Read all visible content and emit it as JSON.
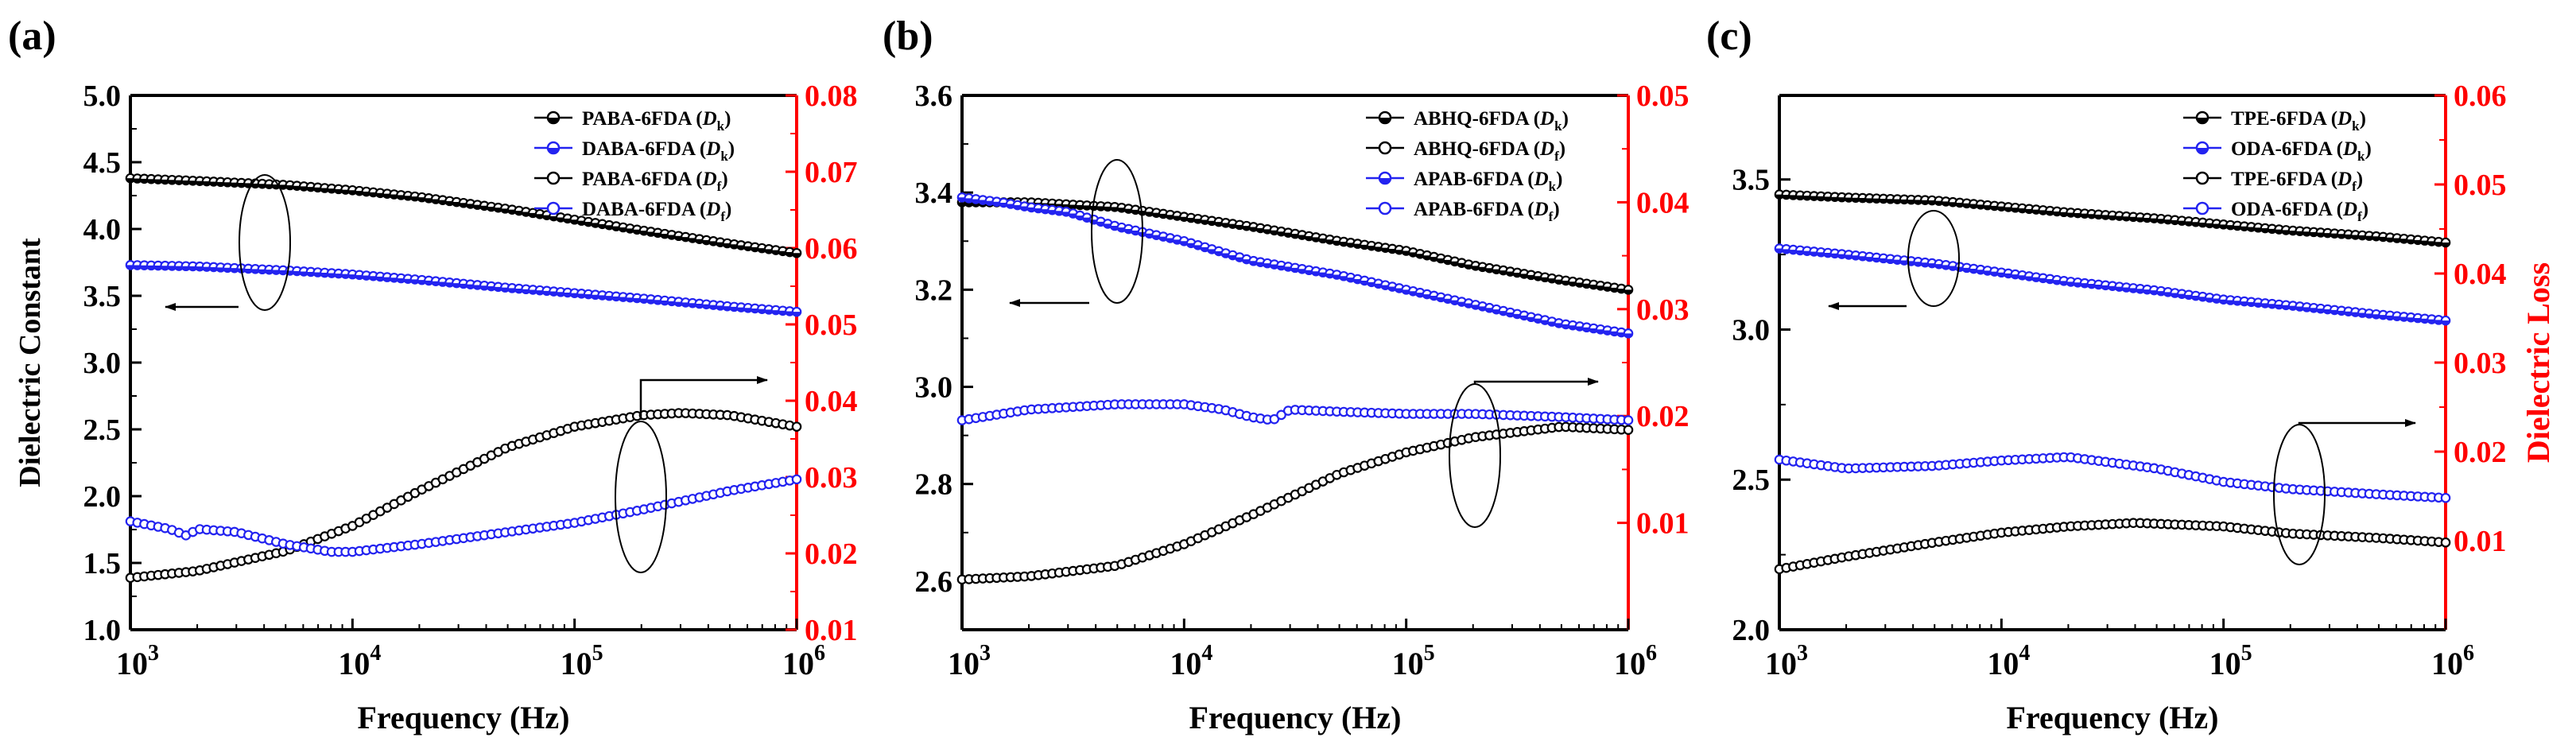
{
  "colors": {
    "black": "#000000",
    "blue": "#2323f0",
    "red": "#ff0000"
  },
  "axis_titles": {
    "frequency": "Frequency (Hz)",
    "dielectric_constant": "Dielectric  Constant",
    "dielectric_loss": "Dielectric Loss"
  },
  "chart_data": [
    {
      "panel": "(a)",
      "type": "line",
      "xlabel": "Frequency (Hz)",
      "ylabel": "Dielectric  Constant",
      "xscale": "log",
      "xlim": [
        1000,
        1000000
      ],
      "xticks": [
        {
          "exp": "3"
        },
        {
          "exp": "4"
        },
        {
          "exp": "5"
        },
        {
          "exp": "6"
        }
      ],
      "ylim": [
        1.0,
        5.0
      ],
      "yticks": [
        "1.0",
        "1.5",
        "2.0",
        "2.5",
        "3.0",
        "3.5",
        "4.0",
        "4.5",
        "5.0"
      ],
      "y2lim": [
        0.01,
        0.08
      ],
      "y2ticks": [
        "0.01",
        "0.02",
        "0.03",
        "0.04",
        "0.05",
        "0.06",
        "0.07",
        "0.08"
      ],
      "legend_position": "top-right",
      "legend": [
        {
          "text": "PABA-6FDA (",
          "sym": "D",
          "sub": "k",
          "marker": "half-filled",
          "color": "#000000"
        },
        {
          "text": "DABA-6FDA (",
          "sym": "D",
          "sub": "k",
          "marker": "half-filled",
          "color": "#2323f0"
        },
        {
          "text": "PABA-6FDA (",
          "sym": "D",
          "sub": "f",
          "marker": "open",
          "color": "#000000"
        },
        {
          "text": "DABA-6FDA (",
          "sym": "D",
          "sub": "f",
          "marker": "open",
          "color": "#2323f0"
        }
      ],
      "series": [
        {
          "name": "PABA-6FDA (Dk)",
          "axis": "left",
          "color": "#000000",
          "marker": "half-filled",
          "x": [
            1000,
            2000,
            5000,
            10000,
            20000,
            50000,
            100000,
            200000,
            500000,
            1000000
          ],
          "y": [
            4.38,
            4.36,
            4.33,
            4.29,
            4.24,
            4.15,
            4.07,
            3.99,
            3.89,
            3.82
          ]
        },
        {
          "name": "DABA-6FDA (Dk)",
          "axis": "left",
          "color": "#2323f0",
          "marker": "half-filled",
          "x": [
            1000,
            2000,
            5000,
            10000,
            20000,
            50000,
            100000,
            200000,
            500000,
            1000000
          ],
          "y": [
            3.73,
            3.72,
            3.69,
            3.66,
            3.62,
            3.56,
            3.52,
            3.48,
            3.42,
            3.38
          ]
        },
        {
          "name": "PABA-6FDA (Df)",
          "axis": "right",
          "color": "#000000",
          "marker": "open",
          "x": [
            1000,
            2000,
            5000,
            10000,
            20000,
            50000,
            100000,
            200000,
            300000,
            500000,
            1000000
          ],
          "y": [
            0.0168,
            0.0177,
            0.0203,
            0.0236,
            0.0282,
            0.0339,
            0.0366,
            0.0381,
            0.0384,
            0.0381,
            0.0366
          ]
        },
        {
          "name": "DABA-6FDA (Df)",
          "axis": "right",
          "color": "#2323f0",
          "marker": "open",
          "x": [
            1000,
            1500,
            1800,
            2000,
            3000,
            5000,
            8000,
            10000,
            20000,
            50000,
            100000,
            200000,
            500000,
            1000000
          ],
          "y": [
            0.0242,
            0.0232,
            0.0223,
            0.0232,
            0.0228,
            0.0212,
            0.0202,
            0.0202,
            0.0212,
            0.0228,
            0.024,
            0.0257,
            0.0282,
            0.0297
          ]
        }
      ]
    },
    {
      "panel": "(b)",
      "type": "line",
      "xlabel": "Frequency (Hz)",
      "ylabel": "",
      "xscale": "log",
      "xlim": [
        1000,
        1000000
      ],
      "xticks": [
        {
          "exp": "3"
        },
        {
          "exp": "4"
        },
        {
          "exp": "5"
        },
        {
          "exp": "6"
        }
      ],
      "ylim": [
        2.5,
        3.6
      ],
      "yticks": [
        "2.6",
        "2.8",
        "3.0",
        "3.2",
        "3.4",
        "3.6"
      ],
      "y2lim": [
        0.0,
        0.05
      ],
      "y2ticks": [
        "0.01",
        "0.02",
        "0.03",
        "0.04",
        "0.05"
      ],
      "legend_position": "top-right",
      "legend": [
        {
          "text": "ABHQ-6FDA (",
          "sym": "D",
          "sub": "k",
          "marker": "half-filled",
          "color": "#000000"
        },
        {
          "text": "ABHQ-6FDA (",
          "sym": "D",
          "sub": "f",
          "marker": "open",
          "color": "#000000"
        },
        {
          "text": "APAB-6FDA (",
          "sym": "D",
          "sub": "k",
          "marker": "half-filled",
          "color": "#2323f0"
        },
        {
          "text": "APAB-6FDA (",
          "sym": "D",
          "sub": "f",
          "marker": "open",
          "color": "#2323f0"
        }
      ],
      "series": [
        {
          "name": "ABHQ-6FDA (Dk)",
          "axis": "left",
          "color": "#000000",
          "marker": "half-filled",
          "x": [
            1000,
            2000,
            5000,
            10000,
            20000,
            50000,
            100000,
            200000,
            500000,
            1000000
          ],
          "y": [
            3.38,
            3.38,
            3.37,
            3.35,
            3.33,
            3.3,
            3.28,
            3.25,
            3.22,
            3.2
          ]
        },
        {
          "name": "APAB-6FDA (Dk)",
          "axis": "left",
          "color": "#2323f0",
          "marker": "half-filled",
          "x": [
            1000,
            1500,
            2000,
            3000,
            5000,
            10000,
            20000,
            50000,
            100000,
            200000,
            500000,
            1000000
          ],
          "y": [
            3.39,
            3.38,
            3.37,
            3.36,
            3.33,
            3.3,
            3.26,
            3.23,
            3.2,
            3.17,
            3.13,
            3.11
          ]
        },
        {
          "name": "ABHQ-6FDA (Df)",
          "axis": "right",
          "color": "#000000",
          "marker": "open",
          "x": [
            1000,
            2000,
            5000,
            10000,
            20000,
            50000,
            100000,
            200000,
            500000,
            1000000
          ],
          "y": [
            0.0047,
            0.005,
            0.006,
            0.008,
            0.0107,
            0.0146,
            0.0166,
            0.018,
            0.019,
            0.0187
          ]
        },
        {
          "name": "APAB-6FDA (Df)",
          "axis": "right",
          "color": "#2323f0",
          "marker": "open",
          "x": [
            1000,
            2000,
            5000,
            10000,
            15000,
            20000,
            25000,
            30000,
            50000,
            100000,
            200000,
            500000,
            1000000
          ],
          "y": [
            0.0196,
            0.0206,
            0.0211,
            0.0211,
            0.0206,
            0.0199,
            0.0196,
            0.0206,
            0.0204,
            0.0202,
            0.0202,
            0.0199,
            0.0196
          ]
        }
      ]
    },
    {
      "panel": "(c)",
      "type": "line",
      "xlabel": "Frequency (Hz)",
      "ylabel": "",
      "y2label": "Dielectric Loss",
      "xscale": "log",
      "xlim": [
        1000,
        1000000
      ],
      "xticks": [
        {
          "exp": "3"
        },
        {
          "exp": "4"
        },
        {
          "exp": "5"
        },
        {
          "exp": "6"
        }
      ],
      "ylim": [
        2.0,
        3.78
      ],
      "yticks": [
        "2.0",
        "2.5",
        "3.0",
        "3.5"
      ],
      "y2lim": [
        0.0,
        0.06
      ],
      "y2ticks": [
        "0.01",
        "0.02",
        "0.03",
        "0.04",
        "0.05",
        "0.06"
      ],
      "legend_position": "top-right",
      "legend": [
        {
          "text": "TPE-6FDA (",
          "sym": "D",
          "sub": "k",
          "marker": "half-filled",
          "color": "#000000"
        },
        {
          "text": "ODA-6FDA (",
          "sym": "D",
          "sub": "k",
          "marker": "half-filled",
          "color": "#2323f0"
        },
        {
          "text": "TPE-6FDA (",
          "sym": "D",
          "sub": "f",
          "marker": "open",
          "color": "#000000"
        },
        {
          "text": "ODA-6FDA (",
          "sym": "D",
          "sub": "f",
          "marker": "open",
          "color": "#2323f0"
        }
      ],
      "series": [
        {
          "name": "TPE-6FDA (Dk)",
          "axis": "left",
          "color": "#000000",
          "marker": "half-filled",
          "x": [
            1000,
            2000,
            5000,
            10000,
            20000,
            50000,
            100000,
            200000,
            500000,
            1000000
          ],
          "y": [
            3.45,
            3.44,
            3.43,
            3.41,
            3.39,
            3.37,
            3.35,
            3.33,
            3.31,
            3.29
          ]
        },
        {
          "name": "ODA-6FDA (Dk)",
          "axis": "left",
          "color": "#2323f0",
          "marker": "half-filled",
          "x": [
            1000,
            2000,
            5000,
            10000,
            20000,
            50000,
            100000,
            200000,
            500000,
            1000000
          ],
          "y": [
            3.27,
            3.25,
            3.22,
            3.19,
            3.16,
            3.13,
            3.1,
            3.08,
            3.05,
            3.03
          ]
        },
        {
          "name": "TPE-6FDA (Df)",
          "axis": "right",
          "color": "#000000",
          "marker": "open",
          "x": [
            1000,
            2000,
            5000,
            10000,
            20000,
            40000,
            100000,
            200000,
            500000,
            1000000
          ],
          "y": [
            0.0068,
            0.0082,
            0.0098,
            0.0109,
            0.0116,
            0.012,
            0.0116,
            0.0108,
            0.0103,
            0.0098
          ]
        },
        {
          "name": "ODA-6FDA (Df)",
          "axis": "right",
          "color": "#2323f0",
          "marker": "open",
          "x": [
            1000,
            2000,
            5000,
            10000,
            20000,
            50000,
            100000,
            200000,
            500000,
            1000000
          ],
          "y": [
            0.0191,
            0.0181,
            0.0184,
            0.019,
            0.0194,
            0.0181,
            0.0166,
            0.0158,
            0.0152,
            0.0148
          ]
        }
      ]
    }
  ]
}
